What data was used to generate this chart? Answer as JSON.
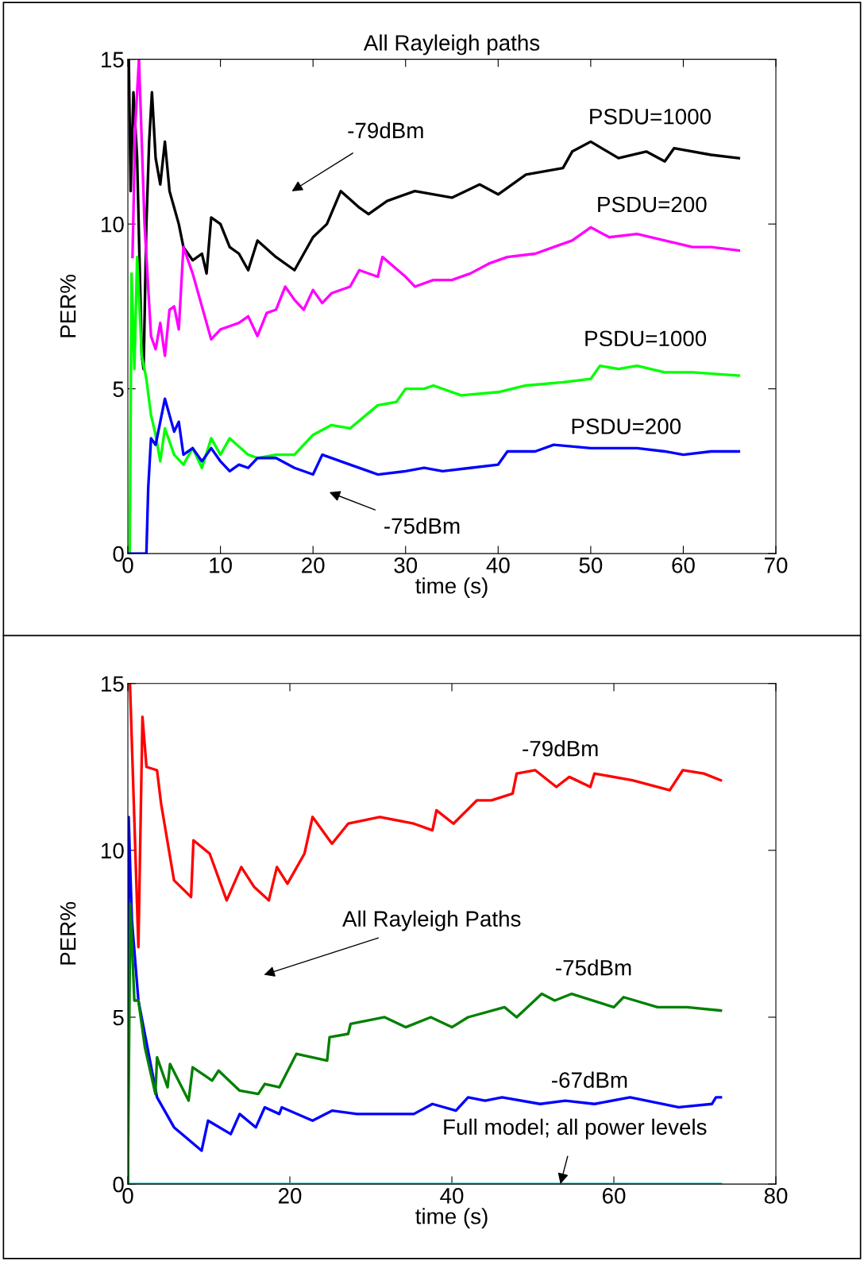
{
  "chart_data": [
    {
      "type": "line",
      "title": "All Rayleigh paths",
      "xlabel": "time (s)",
      "ylabel": "PER%",
      "xlim": [
        0,
        70
      ],
      "ylim": [
        0,
        15
      ],
      "xticks": [
        0,
        10,
        20,
        30,
        40,
        50,
        60,
        70
      ],
      "yticks": [
        0,
        5,
        10,
        15
      ],
      "grid": false,
      "legend": false,
      "series": [
        {
          "color": "#000000",
          "x": [
            0.1,
            0.3,
            0.6,
            1,
            1.5,
            1.7,
            2,
            2.3,
            2.6,
            3,
            3.5,
            4,
            4.5,
            5.5,
            6,
            7,
            8,
            8.5,
            9,
            10,
            11,
            12,
            13,
            14,
            16,
            18,
            20,
            21.5,
            23,
            25,
            26,
            28,
            31,
            35,
            38,
            40,
            43,
            47,
            48,
            50,
            53,
            56,
            58,
            59,
            63,
            66
          ],
          "values": [
            15,
            11,
            14,
            12,
            6,
            5.6,
            10,
            12.5,
            14,
            12,
            11.2,
            12.5,
            11,
            10,
            9.3,
            8.9,
            9.1,
            8.5,
            10.2,
            10,
            9.3,
            9.1,
            8.6,
            9.5,
            9,
            8.6,
            9.6,
            10,
            11,
            10.5,
            10.3,
            10.7,
            11,
            10.8,
            11.2,
            10.9,
            11.5,
            11.7,
            12.2,
            12.5,
            12,
            12.2,
            11.9,
            12.3,
            12.1,
            12
          ]
        },
        {
          "color": "#ff00ff",
          "x": [
            0.5,
            0.8,
            1.2,
            1.8,
            2.5,
            3,
            3.5,
            4,
            4.5,
            5,
            5.5,
            6,
            7,
            8,
            9,
            10,
            11,
            12,
            13,
            14,
            15,
            16,
            17,
            18,
            19,
            20,
            21,
            22,
            24,
            25,
            27,
            27.5,
            30,
            31,
            33,
            35,
            37,
            39,
            41,
            44,
            46,
            48,
            50,
            52,
            55,
            58,
            61,
            63,
            66
          ],
          "values": [
            9,
            13,
            15,
            10,
            6.6,
            6.2,
            7,
            6,
            7.4,
            7.5,
            6.8,
            9.3,
            8.5,
            7.5,
            6.5,
            6.8,
            6.9,
            7.0,
            7.2,
            6.6,
            7.3,
            7.4,
            8.1,
            7.7,
            7.4,
            8.0,
            7.6,
            7.9,
            8.1,
            8.6,
            8.4,
            9.0,
            8.4,
            8.1,
            8.3,
            8.3,
            8.5,
            8.8,
            9.0,
            9.1,
            9.3,
            9.5,
            9.9,
            9.6,
            9.7,
            9.5,
            9.3,
            9.3,
            9.2
          ]
        },
        {
          "color": "#00ff00",
          "x": [
            0.2,
            0.4,
            0.7,
            1,
            1.5,
            2,
            2.5,
            3,
            3.5,
            4,
            5,
            6,
            7,
            8,
            9,
            10,
            11,
            13,
            14,
            16,
            18,
            20,
            22,
            24,
            27,
            29,
            30,
            32,
            33,
            36,
            40,
            43,
            47,
            50,
            51,
            53,
            55,
            58,
            61,
            66
          ],
          "values": [
            0,
            8.5,
            5.6,
            9.0,
            6,
            5.3,
            4.2,
            3.6,
            2.8,
            3.8,
            3.0,
            2.7,
            3.2,
            2.6,
            3.5,
            3.0,
            3.5,
            3.0,
            2.9,
            3.0,
            3.0,
            3.6,
            3.9,
            3.8,
            4.5,
            4.6,
            5.0,
            5.0,
            5.1,
            4.8,
            4.9,
            5.1,
            5.2,
            5.3,
            5.7,
            5.6,
            5.7,
            5.5,
            5.5,
            5.4
          ]
        },
        {
          "color": "#0000ff",
          "x": [
            0,
            2,
            2.2,
            2.5,
            3,
            3.5,
            4,
            5,
            5.5,
            6,
            7,
            8,
            9,
            10,
            11,
            12,
            13,
            14,
            16,
            18,
            20,
            21,
            24,
            26,
            27,
            30,
            32,
            34,
            37,
            40,
            41,
            44,
            46,
            50,
            55,
            58,
            60,
            63,
            66
          ],
          "values": [
            0,
            0,
            2,
            3.5,
            3.3,
            4.0,
            4.7,
            3.7,
            4.0,
            3.0,
            3.2,
            2.8,
            3.2,
            2.8,
            2.5,
            2.7,
            2.6,
            2.9,
            2.9,
            2.6,
            2.4,
            3.0,
            2.7,
            2.5,
            2.4,
            2.5,
            2.6,
            2.5,
            2.6,
            2.7,
            3.1,
            3.1,
            3.3,
            3.2,
            3.2,
            3.1,
            3.0,
            3.1,
            3.1
          ]
        }
      ],
      "annotations": [
        "-79dBm",
        "-75dBm",
        {
          "text": "PSDU=1000",
          "x": 56.4,
          "y": 12.2
        },
        {
          "text": "PSDU=200",
          "x": 56.6,
          "y": 9.6
        },
        {
          "text": "PSDU=1000",
          "x": 55.9,
          "y": 5.6
        },
        {
          "text": "PSDU=200",
          "x": 55,
          "y": 3.2
        }
      ]
    },
    {
      "type": "line",
      "xlabel": "time (s)",
      "ylabel": "PER%",
      "xlim": [
        0,
        80
      ],
      "ylim": [
        0,
        15
      ],
      "xticks": [
        0,
        20,
        40,
        60,
        80
      ],
      "yticks": [
        0,
        5,
        10,
        15
      ],
      "grid": false,
      "legend": false,
      "series": [
        {
          "color": "#00bfbf",
          "x": [
            0,
            73.2
          ],
          "values": [
            0,
            0
          ]
        },
        {
          "color": "#0000ff",
          "x": [
            0,
            0.1,
            0.3,
            0.5,
            1.3,
            3.6,
            5.7,
            9.1,
            9.9,
            12.7,
            13.8,
            15.8,
            16.9,
            18.7,
            19,
            22.8,
            25.2,
            28.3,
            35.3,
            37.6,
            40.5,
            42,
            44.1,
            46.2,
            50.9,
            54,
            57.6,
            62,
            68,
            72.1,
            72.6,
            73.2
          ],
          "values": [
            0,
            11,
            9.4,
            7.9,
            5.5,
            2.6,
            1.7,
            1.0,
            1.9,
            1.5,
            2.1,
            1.7,
            2.3,
            2.1,
            2.3,
            1.9,
            2.2,
            2.1,
            2.1,
            2.4,
            2.2,
            2.6,
            2.5,
            2.6,
            2.4,
            2.5,
            2.4,
            2.6,
            2.3,
            2.4,
            2.6,
            2.6
          ]
        },
        {
          "color": "#008000",
          "x": [
            0,
            0.3,
            0.8,
            1.3,
            2.1,
            3.4,
            3.6,
            4.9,
            5.2,
            7.5,
            8.0,
            10.4,
            11.2,
            13.8,
            16.1,
            16.9,
            18.7,
            20.8,
            24.6,
            24.9,
            27.2,
            27.5,
            31.7,
            34.3,
            37.4,
            40,
            42,
            46.5,
            48,
            51.1,
            52.7,
            54.8,
            60,
            61.2,
            65.4,
            69,
            73.2
          ],
          "values": [
            0,
            8.4,
            5.5,
            5.5,
            4.1,
            2.7,
            3.8,
            2.9,
            3.6,
            2.5,
            3.5,
            3.1,
            3.4,
            2.8,
            2.7,
            3.0,
            2.9,
            3.9,
            3.7,
            4.4,
            4.5,
            4.8,
            5.0,
            4.7,
            5.0,
            4.7,
            5.0,
            5.3,
            5.0,
            5.7,
            5.5,
            5.7,
            5.3,
            5.6,
            5.3,
            5.3,
            5.2
          ]
        },
        {
          "color": "#ff0000",
          "x": [
            0.26,
            1.3,
            1.8,
            2.3,
            3.6,
            4.1,
            5.7,
            7.8,
            8.1,
            10.1,
            12.2,
            14,
            15.6,
            17.4,
            18.4,
            19.7,
            21.8,
            22.8,
            25.2,
            27.2,
            31.1,
            35.3,
            37.6,
            38.1,
            40.2,
            43.1,
            44.9,
            47.5,
            48,
            50.3,
            52.9,
            54.5,
            57.1,
            57.6,
            62.3,
            66.9,
            68.5,
            71.1,
            73.2
          ],
          "values": [
            15,
            7.1,
            14.0,
            12.5,
            12.4,
            11.4,
            9.1,
            8.6,
            10.3,
            9.9,
            8.5,
            9.5,
            8.9,
            8.5,
            9.5,
            9.0,
            9.9,
            11.0,
            10.2,
            10.8,
            11.0,
            10.8,
            10.6,
            11.2,
            10.8,
            11.5,
            11.5,
            11.7,
            12.3,
            12.4,
            11.9,
            12.2,
            11.9,
            12.3,
            12.1,
            11.8,
            12.4,
            12.3,
            12.1
          ]
        }
      ],
      "annotations": [
        {
          "text": "-79dBm",
          "x": 53.4,
          "y": 12.0
        },
        "All Rayleigh Paths",
        {
          "text": "-75dBm",
          "x": 57.5,
          "y": 5.5
        },
        {
          "text": "-67dBm",
          "x": 57,
          "y": 2.4
        },
        {
          "text": "Full model; all power levels",
          "x": 53.4,
          "y": 0
        }
      ]
    }
  ]
}
